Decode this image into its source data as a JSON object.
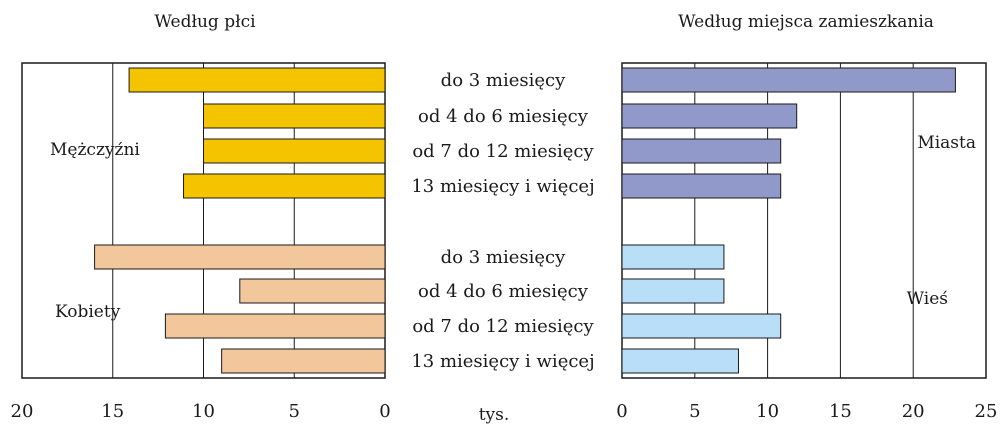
{
  "chart_data": [
    {
      "type": "bar",
      "orientation": "horizontal-reversed",
      "title": "Według płci",
      "xlabel": "tys.",
      "xlim": [
        0,
        20
      ],
      "xticks": [
        20,
        15,
        10,
        5,
        0
      ],
      "grid": true,
      "categories": [
        "do 3 miesięcy",
        "od 4 do 6 miesięcy",
        "od 7 do 12 miesięcy",
        "13 miesięcy i więcej"
      ],
      "series": [
        {
          "name": "Mężczyźni",
          "color": "#f5c400",
          "values": [
            14.1,
            10.0,
            10.0,
            11.1
          ]
        },
        {
          "name": "Kobiety",
          "color": "#f2c79c",
          "values": [
            16.0,
            8.0,
            12.1,
            9.0
          ]
        }
      ]
    },
    {
      "type": "bar",
      "orientation": "horizontal",
      "title": "Według miejsca zamieszkania",
      "xlim": [
        0,
        25
      ],
      "xticks": [
        0,
        5,
        10,
        15,
        20,
        25
      ],
      "grid": true,
      "categories": [
        "do 3 miesięcy",
        "od 4 do 6 miesięcy",
        "od 7 do 12 miesięcy",
        "13 miesięcy i więcej"
      ],
      "series": [
        {
          "name": "Miasta",
          "color": "#9099c9",
          "values": [
            22.9,
            12.0,
            10.9,
            10.9
          ]
        },
        {
          "name": "Wieś",
          "color": "#b8dff7",
          "values": [
            7.0,
            7.0,
            10.9,
            8.0
          ]
        }
      ]
    }
  ]
}
